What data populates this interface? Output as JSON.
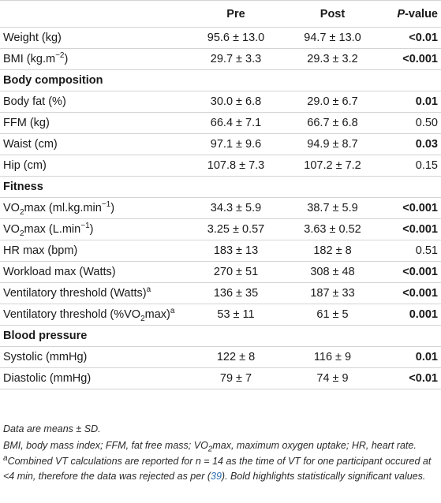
{
  "headers": {
    "col0": "",
    "pre": "Pre",
    "post": "Post",
    "pvalue_p": "P",
    "pvalue_rest": "-value"
  },
  "rows": {
    "weight": {
      "label": "Weight (kg)",
      "pre": "95.6 ± 13.0",
      "post": "94.7 ± 13.0",
      "p": "<0.01"
    },
    "bmi": {
      "label_a": "BMI (kg.m",
      "label_sup": "−2",
      "label_b": ")",
      "pre": "29.7 ± 3.3",
      "post": "29.3 ± 3.2",
      "p": "<0.001"
    },
    "sec_body": {
      "label": "Body composition"
    },
    "bodyfat": {
      "label": "Body fat (%)",
      "pre": "30.0 ± 6.8",
      "post": "29.0 ± 6.7",
      "p": "0.01"
    },
    "ffm": {
      "label": "FFM (kg)",
      "pre": "66.4 ± 7.1",
      "post": "66.7 ± 6.8",
      "p": "0.50"
    },
    "waist": {
      "label": "Waist (cm)",
      "pre": "97.1 ± 9.6",
      "post": "94.9 ± 8.7",
      "p": "0.03"
    },
    "hip": {
      "label": "Hip (cm)",
      "pre": "107.8 ± 7.3",
      "post": "107.2 ± 7.2",
      "p": "0.15"
    },
    "sec_fit": {
      "label": "Fitness"
    },
    "vo2rel": {
      "label_a": "VO",
      "label_sub": "2",
      "label_b": "max (ml.kg.min",
      "label_sup": "−1",
      "label_c": ")",
      "pre": "34.3 ± 5.9",
      "post": "38.7 ± 5.9",
      "p": "<0.001"
    },
    "vo2abs": {
      "label_a": "VO",
      "label_sub": "2",
      "label_b": "max (L.min",
      "label_sup": "−1",
      "label_c": ")",
      "pre": "3.25 ± 0.57",
      "post": "3.63 ± 0.52",
      "p": "<0.001"
    },
    "hrmax": {
      "label": "HR max (bpm)",
      "pre": "183 ± 13",
      "post": "182 ± 8",
      "p": "0.51"
    },
    "workload": {
      "label": "Workload max (Watts)",
      "pre": "270 ± 51",
      "post": "308 ± 48",
      "p": "<0.001"
    },
    "vtw": {
      "label": "Ventilatory threshold (Watts)",
      "label_sup": "a",
      "pre": "136 ± 35",
      "post": "187 ± 33",
      "p": "<0.001"
    },
    "vtp": {
      "label_a": "Ventilatory threshold (%VO",
      "label_sub": "2",
      "label_b": "max)",
      "label_sup": "a",
      "pre": "53 ± 11",
      "post": "61 ± 5",
      "p": "0.001"
    },
    "sec_bp": {
      "label": "Blood pressure"
    },
    "sys": {
      "label": "Systolic (mmHg)",
      "pre": "122 ± 8",
      "post": "116 ± 9",
      "p": "0.01"
    },
    "dia": {
      "label": "Diastolic (mmHg)",
      "pre": "79 ± 7",
      "post": "74 ± 9",
      "p": "<0.01"
    }
  },
  "notes": {
    "n1": "Data are means ± SD.",
    "n2_a": "BMI, body mass index; FFM, fat free mass; VO",
    "n2_sub": "2",
    "n2_b": "max, maximum oxygen uptake; HR, heart rate.",
    "n3_sup": "a",
    "n3_a": "Combined VT calculations are reported for n = 14 as the time of VT for one participant occured at <4 min, therefore the data was rejected as per (",
    "n3_ref": "39",
    "n3_b": "). Bold highlights statistically significant values."
  }
}
